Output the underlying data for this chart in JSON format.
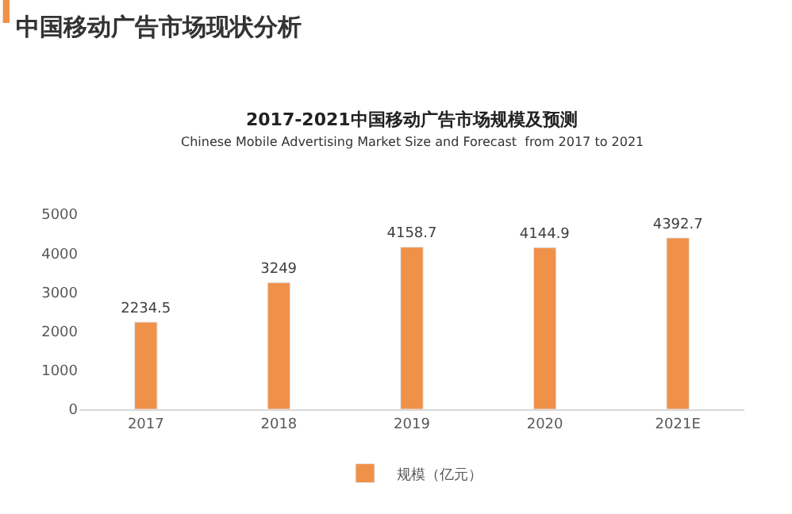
{
  "chart_data": {
    "type": "bar",
    "title": "2017-2021中国移动广告市场规模及预测",
    "subtitle": "Chinese Mobile Advertising Market Size and Forecast  from 2017 to 2021",
    "annotations": [
      "中国移动广告市场现状分析"
    ],
    "categories": [
      "2017",
      "2018",
      "2019",
      "2020",
      "2021E"
    ],
    "series": [
      {
        "name": "规模（亿元）",
        "color": "#f0914a",
        "values": [
          2234.5,
          3249,
          4158.7,
          4144.9,
          4392.7
        ]
      }
    ],
    "ylim": [
      0,
      5000
    ],
    "yticks": [
      0,
      1000,
      2000,
      3000,
      4000,
      5000
    ],
    "grid": false,
    "legend": "bottom",
    "data_labels": true
  }
}
